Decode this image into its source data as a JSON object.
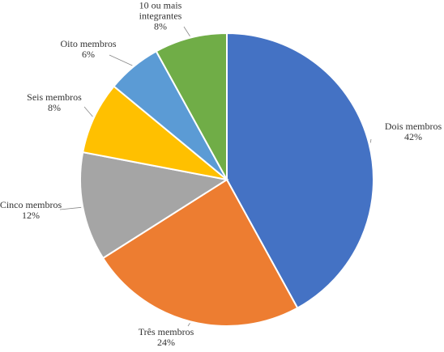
{
  "chart_data": {
    "type": "pie",
    "categories": [
      "Dois membros",
      "Três membros",
      "Cinco membros",
      "Seis membros",
      "Oito membros",
      "10 ou mais integrantes"
    ],
    "values": [
      42,
      24,
      12,
      8,
      6,
      8
    ],
    "value_labels": [
      "42%",
      "24%",
      "12%",
      "8%",
      "6%",
      "8%"
    ],
    "colors": [
      "#4472c4",
      "#ed7d31",
      "#a5a5a5",
      "#ffc000",
      "#5b9bd5",
      "#70ad47"
    ]
  }
}
